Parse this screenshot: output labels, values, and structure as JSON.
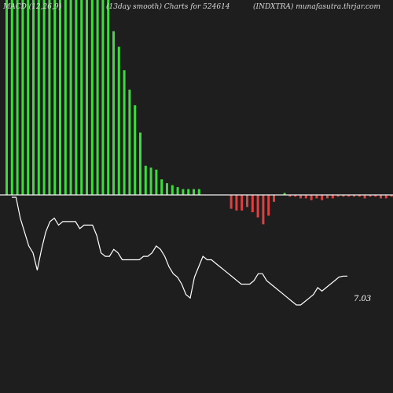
{
  "header": {
    "left": "MACD (12,26,9)",
    "center": "(13day smooth) Charts for 524614",
    "right": "(INDXTRA) munafasutra.thrjar.com"
  },
  "colors": {
    "background": "#1e1e1e",
    "bar_positive": "#3ddc3d",
    "bar_negative": "#e04040",
    "zero_line": "#f2f2f2",
    "line": "#ffffff"
  },
  "chart_data": {
    "type": "bar+line",
    "histogram": {
      "zero_level": 0,
      "values": [
        100,
        100,
        100,
        100,
        100,
        100,
        100,
        100,
        100,
        100,
        100,
        100,
        100,
        100,
        100,
        100,
        100,
        100,
        100,
        100,
        84,
        76,
        64,
        54,
        46,
        32,
        15,
        14,
        13,
        8,
        6,
        5,
        4,
        3,
        3,
        3,
        3,
        0,
        0,
        0,
        0,
        0,
        -8,
        -9,
        -9,
        -7,
        -10,
        -13,
        -17,
        -12,
        -4,
        0,
        1,
        -1,
        -1,
        -2,
        -2,
        -3,
        -2,
        -3,
        -2,
        -2,
        -1,
        -1,
        -1,
        -1,
        -1,
        -2,
        -1,
        -1,
        -2,
        -2,
        -1,
        -1
      ]
    },
    "line": {
      "values": [
        9.3,
        9.3,
        8.7,
        8.3,
        7.9,
        7.7,
        7.2,
        7.8,
        8.3,
        8.6,
        8.7,
        8.5,
        8.6,
        8.6,
        8.6,
        8.6,
        8.4,
        8.5,
        8.5,
        8.5,
        8.2,
        7.7,
        7.6,
        7.6,
        7.8,
        7.7,
        7.5,
        7.5,
        7.5,
        7.5,
        7.5,
        7.6,
        7.6,
        7.7,
        7.9,
        7.8,
        7.6,
        7.3,
        7.1,
        7.0,
        6.8,
        6.5,
        6.4,
        7.0,
        7.3,
        7.6,
        7.5,
        7.5,
        7.4,
        7.3,
        7.2,
        7.1,
        7.0,
        6.9,
        6.8,
        6.8,
        6.8,
        6.9,
        7.1,
        7.1,
        6.9,
        6.8,
        6.7,
        6.6,
        6.5,
        6.4,
        6.3,
        6.2,
        6.2,
        6.3,
        6.4,
        6.5,
        6.7,
        6.6,
        6.7,
        6.8,
        6.9,
        7.0,
        7.03,
        7.03
      ],
      "last_value": "7.03"
    }
  }
}
